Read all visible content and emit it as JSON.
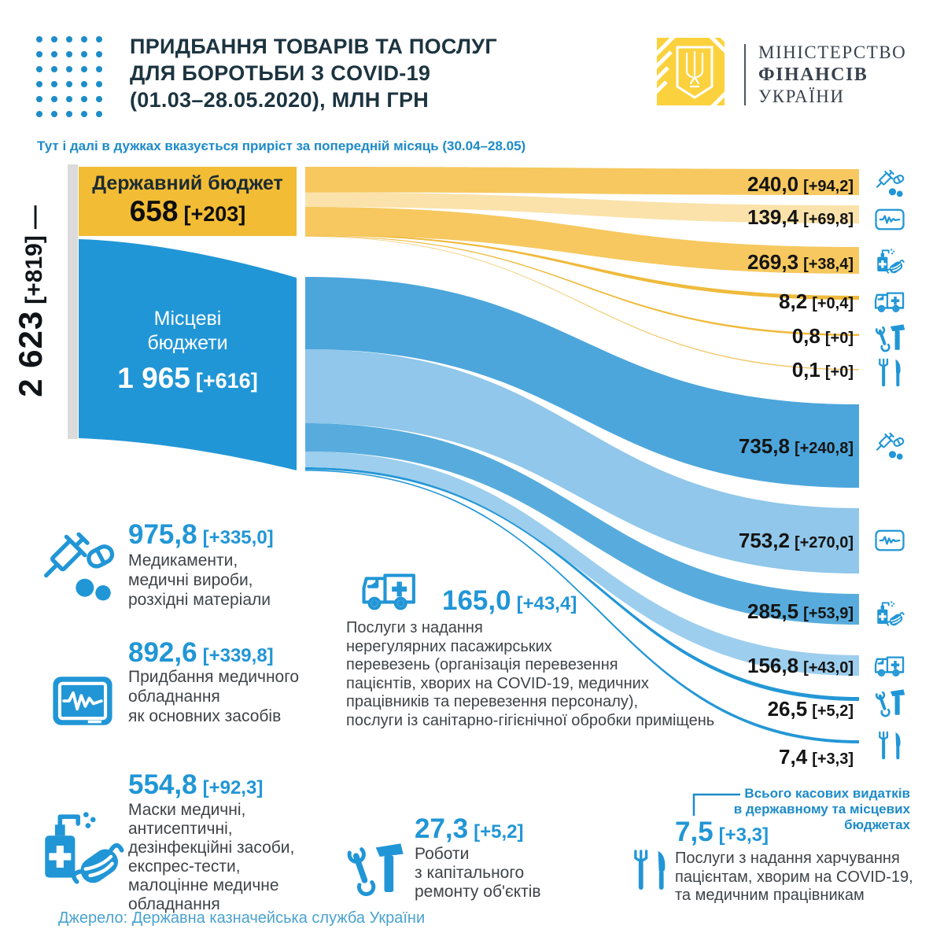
{
  "header": {
    "title": "ПРИДБАННЯ ТОВАРІВ ТА ПОСЛУГ\nДЛЯ БОРОТЬБИ З COVID-19\n(01.03–28.05.2020), МЛН ГРН",
    "note": "Тут і далі в дужках вказується приріст за попередній місяць (30.04–28.05)",
    "ministry": {
      "line1": "МІНІСТЕРСТВО",
      "line2": "ФІНАНСІВ",
      "line3": "УКРАЇНИ"
    }
  },
  "sankey": {
    "total": {
      "value": "2 623",
      "delta": "[+819]",
      "tick": "—"
    },
    "state": {
      "name": "Державний бюджет",
      "value": "658",
      "delta": "[+203]"
    },
    "local": {
      "name": "Місцеві\nбюджети",
      "value": "1 965",
      "delta": "[+616]"
    },
    "state_flows": [
      {
        "value": "240,0",
        "delta": "[+94,2]",
        "icon": "medicines-icon"
      },
      {
        "value": "139,4",
        "delta": "[+69,8]",
        "icon": "equipment-icon"
      },
      {
        "value": "269,3",
        "delta": "[+38,4]",
        "icon": "masks-icon"
      },
      {
        "value": "8,2",
        "delta": "[+0,4]",
        "icon": "ambulance-icon"
      },
      {
        "value": "0,8",
        "delta": "[+0]",
        "icon": "repair-icon"
      },
      {
        "value": "0,1",
        "delta": "[+0]",
        "icon": "food-icon"
      }
    ],
    "local_flows": [
      {
        "value": "735,8",
        "delta": "[+240,8]",
        "icon": "medicines-icon"
      },
      {
        "value": "753,2",
        "delta": "[+270,0]",
        "icon": "equipment-icon"
      },
      {
        "value": "285,5",
        "delta": "[+53,9]",
        "icon": "masks-icon"
      },
      {
        "value": "156,8",
        "delta": "[+43,0]",
        "icon": "ambulance-icon"
      },
      {
        "value": "26,5",
        "delta": "[+5,2]",
        "icon": "repair-icon"
      },
      {
        "value": "7,4",
        "delta": "[+3,3]",
        "icon": "food-icon"
      }
    ]
  },
  "legend": {
    "medicines": {
      "value": "975,8",
      "delta": "[+335,0]",
      "text": "Медикаменти,\nмедичні вироби,\nрозхідні матеріали"
    },
    "equipment": {
      "value": "892,6",
      "delta": "[+339,8]",
      "text": "Придбання медичного\nобладнання\nяк основних засобів"
    },
    "masks": {
      "value": "554,8",
      "delta": "[+92,3]",
      "text": "Маски медичні,\nантисептичні,\nдезінфекційні засоби,\nекспрес-тести,\nмалоцінне медичне\nобладнання"
    },
    "transport": {
      "value": "165,0",
      "delta": "[+43,4]",
      "text": "Послуги з надання\nнерегулярних пасажирських\nперевезень (організація перевезення\nпацієнтів, хворих на COVID-19, медичних\nпрацівників та перевезення персоналу),\nпослуги із санітарно-гігієнічної обробки приміщень"
    },
    "repair": {
      "value": "27,3",
      "delta": "[+5,2]",
      "text": "Роботи\nз капітального\nремонту об'єктів"
    },
    "food": {
      "value": "7,5",
      "delta": "[+3,3]",
      "text": "Послуги з надання харчування\nпацієнтам, хворим на COVID-19,\nта медичним працівникам"
    },
    "annotation": "Всього касових видатків\nв державному та місцевих\nбюджетах"
  },
  "footer": {
    "source": "Джерело: Державна казначейська служба України"
  },
  "colors": {
    "blue": "#2196D6",
    "note_blue": "#1D8BC8",
    "title": "#1C3440",
    "yellow_block": "#F2BC35",
    "logo_yellow": "#FBD23E",
    "band_yellow": "#F6C85F",
    "band_yellow_light": "#FAE2AA",
    "band_gold_line": "#EFBA3C",
    "band_blue_1": "#4CA6DB",
    "band_blue_2": "#90C7EA",
    "band_blue_3": "#58ACDD",
    "band_blue_4": "#9DCEEE",
    "band_blue_line": "#2497D6",
    "gray_bar": "#DBDBDB"
  },
  "chart_data": {
    "type": "sankey",
    "title": "Придбання товарів та послуг для боротьби з COVID-19 (01.03–28.05.2020), млн грн",
    "unit": "млн грн",
    "note": "в дужках вказується приріст за попередній місяць (30.04–28.05)",
    "total": {
      "value": 2623,
      "delta": 819
    },
    "sources": [
      {
        "name": "Державний бюджет",
        "value": 658,
        "delta": 203
      },
      {
        "name": "Місцеві бюджети",
        "value": 1965,
        "delta": 616
      }
    ],
    "categories": [
      {
        "name": "Медикаменти, медичні вироби, розхідні матеріали",
        "total": 975.8,
        "total_delta": 335.0,
        "state": 240.0,
        "state_delta": 94.2,
        "local": 735.8,
        "local_delta": 240.8
      },
      {
        "name": "Придбання медичного обладнання як основних засобів",
        "total": 892.6,
        "total_delta": 339.8,
        "state": 139.4,
        "state_delta": 69.8,
        "local": 753.2,
        "local_delta": 270.0
      },
      {
        "name": "Маски медичні, антисептичні, дезінфекційні засоби, експрес-тести, малоцінне медичне обладнання",
        "total": 554.8,
        "total_delta": 92.3,
        "state": 269.3,
        "state_delta": 38.4,
        "local": 285.5,
        "local_delta": 53.9
      },
      {
        "name": "Послуги з надання нерегулярних пасажирських перевезень (організація перевезення пацієнтів, хворих на COVID-19, медичних працівників та перевезення персоналу), послуги із санітарно-гігієнічної обробки приміщень",
        "total": 165.0,
        "total_delta": 43.4,
        "state": 8.2,
        "state_delta": 0.4,
        "local": 156.8,
        "local_delta": 43.0
      },
      {
        "name": "Роботи з капітального ремонту об'єктів",
        "total": 27.3,
        "total_delta": 5.2,
        "state": 0.8,
        "state_delta": 0,
        "local": 26.5,
        "local_delta": 5.2
      },
      {
        "name": "Послуги з надання харчування пацієнтам, хворим на COVID-19, та медичним працівникам",
        "total": 7.5,
        "total_delta": 3.3,
        "state": 0.1,
        "state_delta": 0,
        "local": 7.4,
        "local_delta": 3.3
      }
    ],
    "source": "Державна казначейська служба України"
  }
}
